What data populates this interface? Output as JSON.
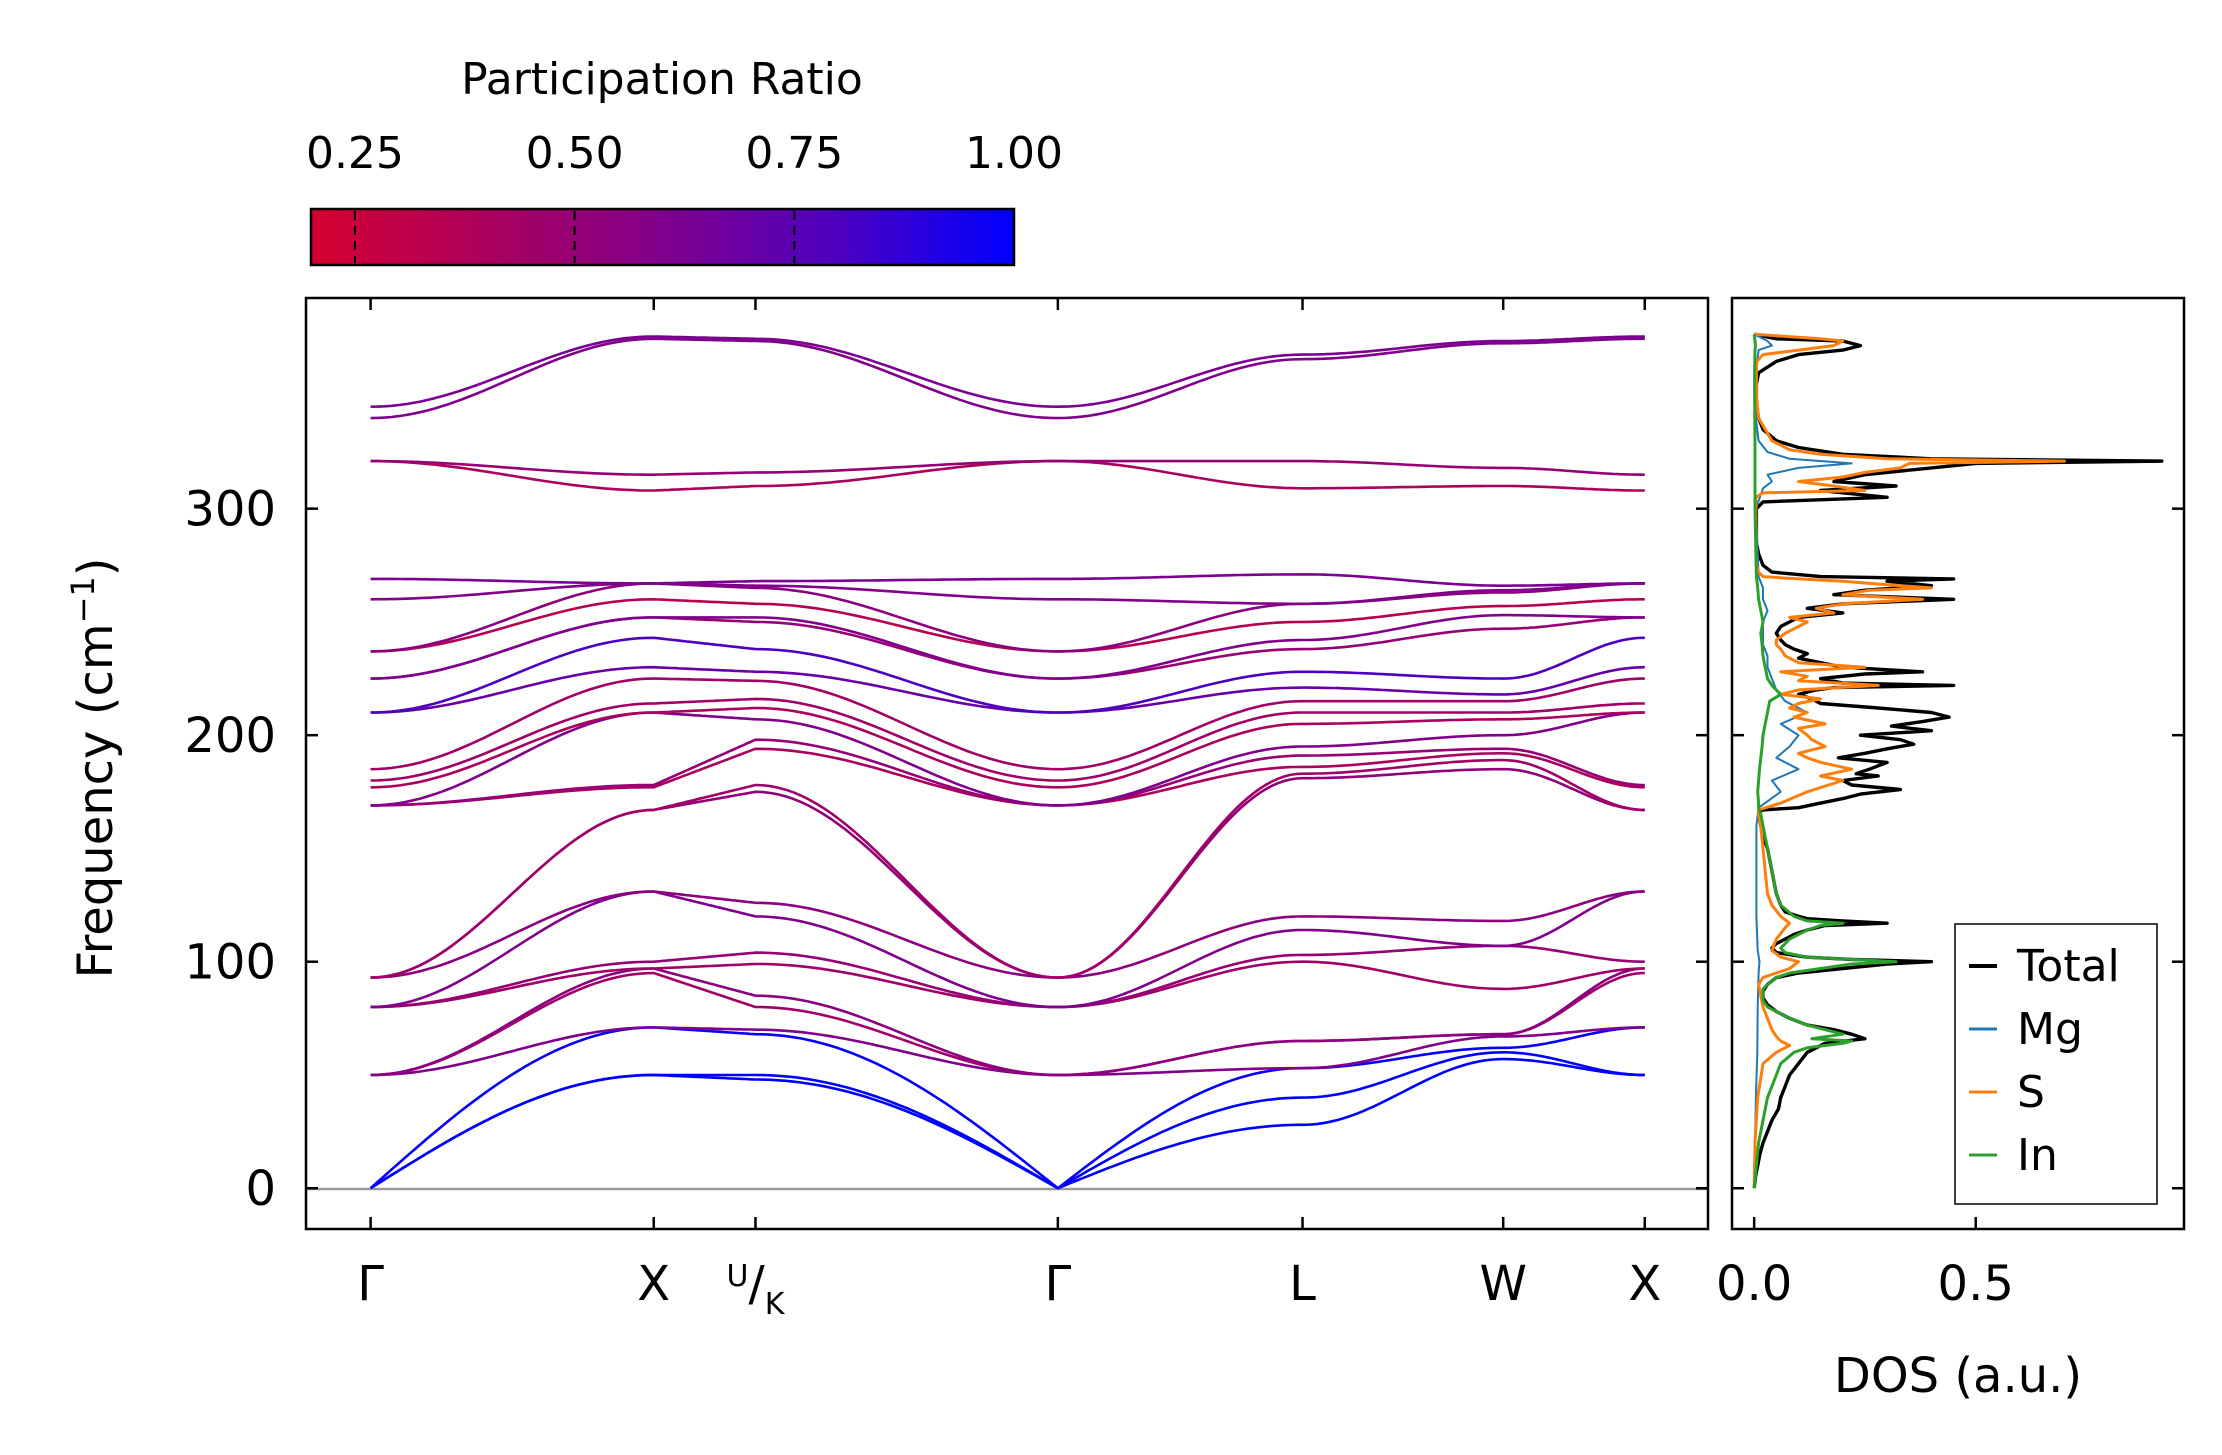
{
  "chart_data": [
    {
      "type": "line",
      "subtype": "phonon-band-structure",
      "title": "",
      "xlabel": "",
      "ylabel": "Frequency (cm⁻¹)",
      "ylabel_main": "Frequency (cm",
      "ylabel_sup": "−1",
      "ylabel_close": ")",
      "ylim": [
        -18,
        393
      ],
      "yticks": [
        0,
        100,
        200,
        300
      ],
      "ytick_labels": [
        "0",
        "100",
        "200",
        "300"
      ],
      "kpoint_labels": [
        "Γ",
        "X",
        "U/K",
        "Γ",
        "L",
        "W",
        "X"
      ],
      "kpoint_label_U": "U",
      "kpoint_label_K": "K",
      "kpoint_label_slash": "/",
      "kpoint_positions": [
        0,
        0.206,
        0.28,
        0.5,
        0.678,
        0.824,
        0.927
      ],
      "x_range": [
        -0.047,
        0.973
      ],
      "color_by": "participation ratio",
      "num_branches": 30,
      "gamma_start": [
        0,
        0,
        0,
        50,
        50,
        50,
        80,
        80,
        80,
        93,
        93,
        93,
        169,
        169,
        169,
        177,
        180,
        185,
        210,
        210,
        225,
        225,
        237,
        237,
        260,
        269,
        321,
        321,
        340,
        345
      ],
      "x1": [
        50,
        50,
        71,
        71,
        95,
        97,
        97,
        100,
        131,
        131,
        167,
        167,
        177,
        178,
        210,
        210,
        214,
        225,
        230,
        243,
        252,
        252,
        260,
        267,
        267,
        267,
        308,
        315,
        375,
        376
      ],
      "u1": [
        48,
        50,
        68,
        70,
        80,
        85,
        99,
        104,
        120,
        126,
        175,
        178,
        194,
        198,
        207,
        212,
        216,
        224,
        228,
        238,
        250,
        252,
        258,
        265,
        266,
        268,
        310,
        316,
        374,
        375
      ],
      "gamma2": [
        0,
        0,
        0,
        50,
        50,
        50,
        80,
        80,
        80,
        93,
        93,
        93,
        169,
        169,
        169,
        177,
        180,
        185,
        210,
        210,
        225,
        225,
        237,
        237,
        260,
        269,
        321,
        321,
        340,
        345
      ],
      "l1": [
        28,
        40,
        53,
        53,
        65,
        65,
        100,
        103,
        114,
        120,
        181,
        183,
        186,
        191,
        195,
        205,
        210,
        215,
        221,
        228,
        238,
        242,
        250,
        258,
        258,
        271,
        309,
        321,
        366,
        368
      ],
      "w1": [
        57,
        60,
        62,
        67,
        68,
        68,
        88,
        107,
        107,
        118,
        185,
        189,
        192,
        194,
        200,
        207,
        210,
        215,
        218,
        225,
        247,
        253,
        257,
        263,
        264,
        266,
        310,
        318,
        373,
        374
      ],
      "x2": [
        50,
        50,
        71,
        71,
        95,
        97,
        97,
        100,
        131,
        131,
        167,
        167,
        177,
        178,
        210,
        210,
        214,
        225,
        230,
        243,
        252,
        252,
        260,
        267,
        267,
        267,
        308,
        315,
        375,
        376
      ],
      "branch_pr": [
        1,
        1,
        0.98,
        0.6,
        0.45,
        0.55,
        0.45,
        0.5,
        0.6,
        0.55,
        0.52,
        0.45,
        0.4,
        0.5,
        0.6,
        0.4,
        0.45,
        0.45,
        0.7,
        0.8,
        0.5,
        0.6,
        0.35,
        0.55,
        0.6,
        0.62,
        0.4,
        0.5,
        0.6,
        0.62
      ]
    },
    {
      "type": "line",
      "subtype": "density-of-states",
      "xlabel": "DOS (a.u.)",
      "xticks": [
        0.0,
        0.5
      ],
      "xtick_labels": [
        "0.0",
        "0.5"
      ],
      "xlim": [
        -0.05,
        0.97
      ],
      "ylim": [
        -18,
        393
      ],
      "legend_placement": "lower-right",
      "series": [
        {
          "name": "Total",
          "color": "#000000",
          "width": 3.4,
          "freq": [
            0,
            5,
            10,
            15,
            20,
            25,
            30,
            35,
            40,
            45,
            50,
            55,
            60,
            62,
            64,
            66,
            68,
            70,
            72,
            75,
            78,
            81,
            84,
            87,
            90,
            93,
            95,
            97,
            99,
            100,
            101,
            102,
            104,
            106,
            108,
            110,
            112,
            114,
            116,
            117,
            118,
            119,
            120,
            122,
            125,
            130,
            135,
            140,
            145,
            150,
            155,
            160,
            163,
            166,
            167,
            168,
            170,
            172,
            174,
            176,
            178,
            180,
            182,
            183,
            185,
            188,
            190,
            192,
            194,
            196,
            198,
            200,
            202,
            204,
            206,
            208,
            210,
            212,
            214,
            216,
            218,
            220,
            221,
            222,
            223,
            225,
            227,
            228,
            230,
            232,
            234,
            236,
            238,
            240,
            242,
            245,
            248,
            250,
            252,
            254,
            256,
            258,
            260,
            262,
            264,
            266,
            268,
            269,
            270,
            272,
            275,
            280,
            285,
            290,
            295,
            300,
            303,
            305,
            307,
            308,
            310,
            312,
            315,
            318,
            320,
            321,
            322,
            324,
            327,
            330,
            335,
            340,
            345,
            350,
            355,
            360,
            365,
            368,
            370,
            372,
            374,
            375,
            377
          ],
          "value": [
            0,
            0.003,
            0.008,
            0.013,
            0.02,
            0.03,
            0.04,
            0.055,
            0.06,
            0.07,
            0.08,
            0.1,
            0.12,
            0.14,
            0.16,
            0.25,
            0.22,
            0.18,
            0.12,
            0.08,
            0.05,
            0.03,
            0.02,
            0.02,
            0.03,
            0.05,
            0.1,
            0.2,
            0.3,
            0.4,
            0.22,
            0.12,
            0.05,
            0.04,
            0.05,
            0.07,
            0.09,
            0.12,
            0.16,
            0.3,
            0.2,
            0.12,
            0.1,
            0.07,
            0.06,
            0.05,
            0.045,
            0.04,
            0.035,
            0.03,
            0.02,
            0.015,
            0.012,
            0.01,
            0.02,
            0.1,
            0.15,
            0.2,
            0.24,
            0.33,
            0.22,
            0.2,
            0.28,
            0.23,
            0.26,
            0.3,
            0.19,
            0.25,
            0.3,
            0.36,
            0.33,
            0.24,
            0.4,
            0.31,
            0.38,
            0.44,
            0.4,
            0.28,
            0.15,
            0.13,
            0.1,
            0.14,
            0.18,
            0.45,
            0.2,
            0.15,
            0.25,
            0.38,
            0.2,
            0.15,
            0.1,
            0.12,
            0.09,
            0.07,
            0.06,
            0.05,
            0.06,
            0.08,
            0.1,
            0.2,
            0.12,
            0.2,
            0.45,
            0.18,
            0.25,
            0.4,
            0.3,
            0.45,
            0.15,
            0.04,
            0.02,
            0.01,
            0.005,
            0.005,
            0.005,
            0.005,
            0.02,
            0.3,
            0.2,
            0.15,
            0.32,
            0.18,
            0.25,
            0.4,
            0.5,
            0.92,
            0.4,
            0.2,
            0.1,
            0.05,
            0.02,
            0.01,
            0.005,
            0.005,
            0.005,
            0.01,
            0.05,
            0.1,
            0.2,
            0.24,
            0.2,
            0.05,
            0
          ]
        },
        {
          "name": "Mg",
          "color": "#1f77b4",
          "width": 2,
          "freq": [
            0,
            20,
            40,
            60,
            80,
            95,
            100,
            105,
            120,
            160,
            168,
            175,
            180,
            185,
            190,
            195,
            200,
            205,
            210,
            215,
            220,
            225,
            230,
            235,
            240,
            250,
            255,
            260,
            265,
            270,
            300,
            309,
            312,
            315,
            318,
            320,
            322,
            325,
            330,
            340,
            350,
            360,
            370,
            372,
            374,
            377
          ],
          "value": [
            0,
            0.002,
            0.004,
            0.007,
            0.008,
            0.01,
            0.012,
            0.008,
            0.005,
            0.005,
            0.01,
            0.06,
            0.04,
            0.1,
            0.05,
            0.08,
            0.1,
            0.06,
            0.12,
            0.07,
            0.05,
            0.04,
            0.03,
            0.03,
            0.02,
            0.02,
            0.03,
            0.02,
            0.02,
            0.01,
            0.004,
            0.02,
            0.04,
            0.03,
            0.1,
            0.22,
            0.08,
            0.03,
            0.01,
            0.004,
            0.003,
            0.004,
            0.01,
            0.04,
            0.03,
            0
          ]
        },
        {
          "name": "S",
          "color": "#ff7f0e",
          "width": 3,
          "freq": [
            0,
            20,
            40,
            55,
            60,
            63,
            65,
            67,
            70,
            75,
            80,
            85,
            90,
            93,
            95,
            97,
            100,
            102,
            105,
            110,
            115,
            117,
            120,
            125,
            130,
            140,
            150,
            160,
            165,
            167,
            170,
            175,
            180,
            182,
            185,
            188,
            190,
            192,
            195,
            198,
            200,
            203,
            205,
            208,
            210,
            212,
            214,
            216,
            218,
            220,
            222,
            224,
            226,
            228,
            230,
            232,
            235,
            238,
            240,
            242,
            245,
            248,
            250,
            252,
            254,
            256,
            258,
            260,
            262,
            264,
            265,
            266,
            268,
            269,
            270,
            272,
            275,
            280,
            290,
            300,
            305,
            307,
            308,
            310,
            312,
            314,
            316,
            318,
            320,
            321,
            322,
            324,
            326,
            330,
            340,
            350,
            360,
            365,
            368,
            370,
            372,
            374,
            375,
            377
          ],
          "value": [
            0,
            0.002,
            0.008,
            0.02,
            0.05,
            0.08,
            0.06,
            0.05,
            0.04,
            0.03,
            0.02,
            0.015,
            0.01,
            0.02,
            0.05,
            0.08,
            0.1,
            0.06,
            0.04,
            0.05,
            0.07,
            0.08,
            0.06,
            0.04,
            0.03,
            0.025,
            0.02,
            0.015,
            0.01,
            0.01,
            0.06,
            0.12,
            0.2,
            0.15,
            0.22,
            0.15,
            0.12,
            0.1,
            0.16,
            0.13,
            0.12,
            0.1,
            0.16,
            0.09,
            0.12,
            0.08,
            0.1,
            0.15,
            0.06,
            0.1,
            0.28,
            0.1,
            0.12,
            0.06,
            0.25,
            0.1,
            0.07,
            0.06,
            0.05,
            0.05,
            0.07,
            0.1,
            0.12,
            0.08,
            0.18,
            0.14,
            0.2,
            0.38,
            0.2,
            0.26,
            0.4,
            0.33,
            0.2,
            0.1,
            0.02,
            0.01,
            0.005,
            0.004,
            0.004,
            0.004,
            0.004,
            0.02,
            0.25,
            0.18,
            0.1,
            0.2,
            0.25,
            0.33,
            0.35,
            0.7,
            0.3,
            0.15,
            0.08,
            0.04,
            0.01,
            0.005,
            0.005,
            0.006,
            0.02,
            0.1,
            0.18,
            0.2,
            0.15,
            0
          ]
        },
        {
          "name": "In",
          "color": "#2ca02c",
          "width": 3,
          "freq": [
            0,
            10,
            20,
            30,
            40,
            45,
            50,
            55,
            60,
            62,
            64,
            65,
            66,
            68,
            70,
            72,
            75,
            78,
            80,
            83,
            85,
            88,
            90,
            93,
            95,
            97,
            99,
            100,
            101,
            102,
            104,
            106,
            108,
            110,
            112,
            114,
            116,
            117,
            118,
            120,
            125,
            130,
            140,
            150,
            160,
            165,
            168,
            170,
            175,
            180,
            185,
            190,
            195,
            200,
            205,
            210,
            215,
            218,
            220,
            222,
            225,
            230,
            235,
            240,
            245,
            250,
            255,
            260,
            265,
            270,
            300,
            310,
            320,
            330,
            350,
            360,
            370,
            372,
            374,
            377
          ],
          "value": [
            0,
            0.005,
            0.01,
            0.02,
            0.03,
            0.04,
            0.05,
            0.06,
            0.09,
            0.12,
            0.2,
            0.22,
            0.13,
            0.2,
            0.16,
            0.12,
            0.08,
            0.05,
            0.03,
            0.02,
            0.02,
            0.02,
            0.03,
            0.05,
            0.08,
            0.15,
            0.22,
            0.32,
            0.22,
            0.12,
            0.07,
            0.06,
            0.07,
            0.08,
            0.1,
            0.12,
            0.15,
            0.2,
            0.12,
            0.09,
            0.06,
            0.05,
            0.04,
            0.03,
            0.02,
            0.015,
            0.01,
            0.01,
            0.008,
            0.01,
            0.012,
            0.015,
            0.018,
            0.02,
            0.025,
            0.03,
            0.035,
            0.06,
            0.05,
            0.04,
            0.03,
            0.025,
            0.02,
            0.018,
            0.015,
            0.02,
            0.015,
            0.01,
            0.008,
            0.005,
            0.002,
            0.002,
            0.002,
            0.002,
            0.001,
            0.001,
            0.002,
            0.003,
            0.002,
            0
          ]
        }
      ]
    },
    {
      "type": "colorbar",
      "title": "Participation Ratio",
      "range": [
        0.2,
        1.0
      ],
      "ticks": [
        0.25,
        0.5,
        0.75,
        1.0
      ],
      "tick_labels": [
        "0.25",
        "0.50",
        "0.75",
        "1.00"
      ],
      "colors": [
        "#d50030",
        "#8a0082",
        "#4d00c0",
        "#0000ff"
      ]
    }
  ]
}
